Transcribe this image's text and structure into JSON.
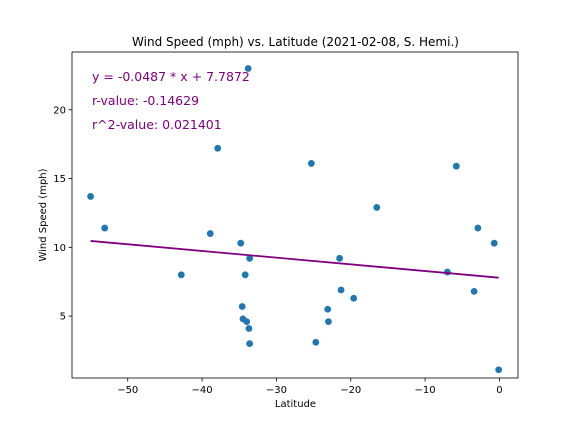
{
  "chart_data": {
    "type": "scatter",
    "title": "Wind Speed (mph) vs. Latitude (2021-02-08, S. Hemi.)",
    "xlabel": "Latitude",
    "ylabel": "Wind Speed (mph)",
    "xlim": [
      -57.5,
      2.5
    ],
    "ylim": [
      0.5,
      24.2
    ],
    "xticks": [
      -50,
      -40,
      -30,
      -20,
      -10,
      0
    ],
    "yticks": [
      5,
      10,
      15,
      20
    ],
    "grid": false,
    "point_color": "#1f77b4",
    "line_color": "#800080",
    "annotation_color": "#800080",
    "points": [
      {
        "x": -55.0,
        "y": 13.7
      },
      {
        "x": -53.1,
        "y": 11.4
      },
      {
        "x": -42.8,
        "y": 8.0
      },
      {
        "x": -38.9,
        "y": 11.0
      },
      {
        "x": -37.9,
        "y": 17.2
      },
      {
        "x": -34.8,
        "y": 10.3
      },
      {
        "x": -34.6,
        "y": 5.7
      },
      {
        "x": -34.5,
        "y": 4.8
      },
      {
        "x": -34.2,
        "y": 8.0
      },
      {
        "x": -34.0,
        "y": 4.6
      },
      {
        "x": -33.8,
        "y": 23.0
      },
      {
        "x": -33.7,
        "y": 4.1
      },
      {
        "x": -33.6,
        "y": 3.0
      },
      {
        "x": -33.6,
        "y": 9.2
      },
      {
        "x": -25.3,
        "y": 16.1
      },
      {
        "x": -24.7,
        "y": 3.1
      },
      {
        "x": -23.1,
        "y": 5.5
      },
      {
        "x": -23.0,
        "y": 4.6
      },
      {
        "x": -21.5,
        "y": 9.2
      },
      {
        "x": -21.3,
        "y": 6.9
      },
      {
        "x": -19.6,
        "y": 6.3
      },
      {
        "x": -16.5,
        "y": 12.9
      },
      {
        "x": -7.0,
        "y": 8.2
      },
      {
        "x": -5.8,
        "y": 15.9
      },
      {
        "x": -3.4,
        "y": 6.8
      },
      {
        "x": -2.9,
        "y": 11.4
      },
      {
        "x": -0.7,
        "y": 10.3
      },
      {
        "x": -0.1,
        "y": 1.1
      }
    ],
    "regression": {
      "slope": -0.0487,
      "intercept": 7.7872,
      "x_range": [
        -55.0,
        -0.1
      ]
    },
    "annotations": [
      "y = -0.0487 * x + 7.7872",
      "r-value: -0.14629",
      "r^2-value: 0.021401"
    ]
  }
}
